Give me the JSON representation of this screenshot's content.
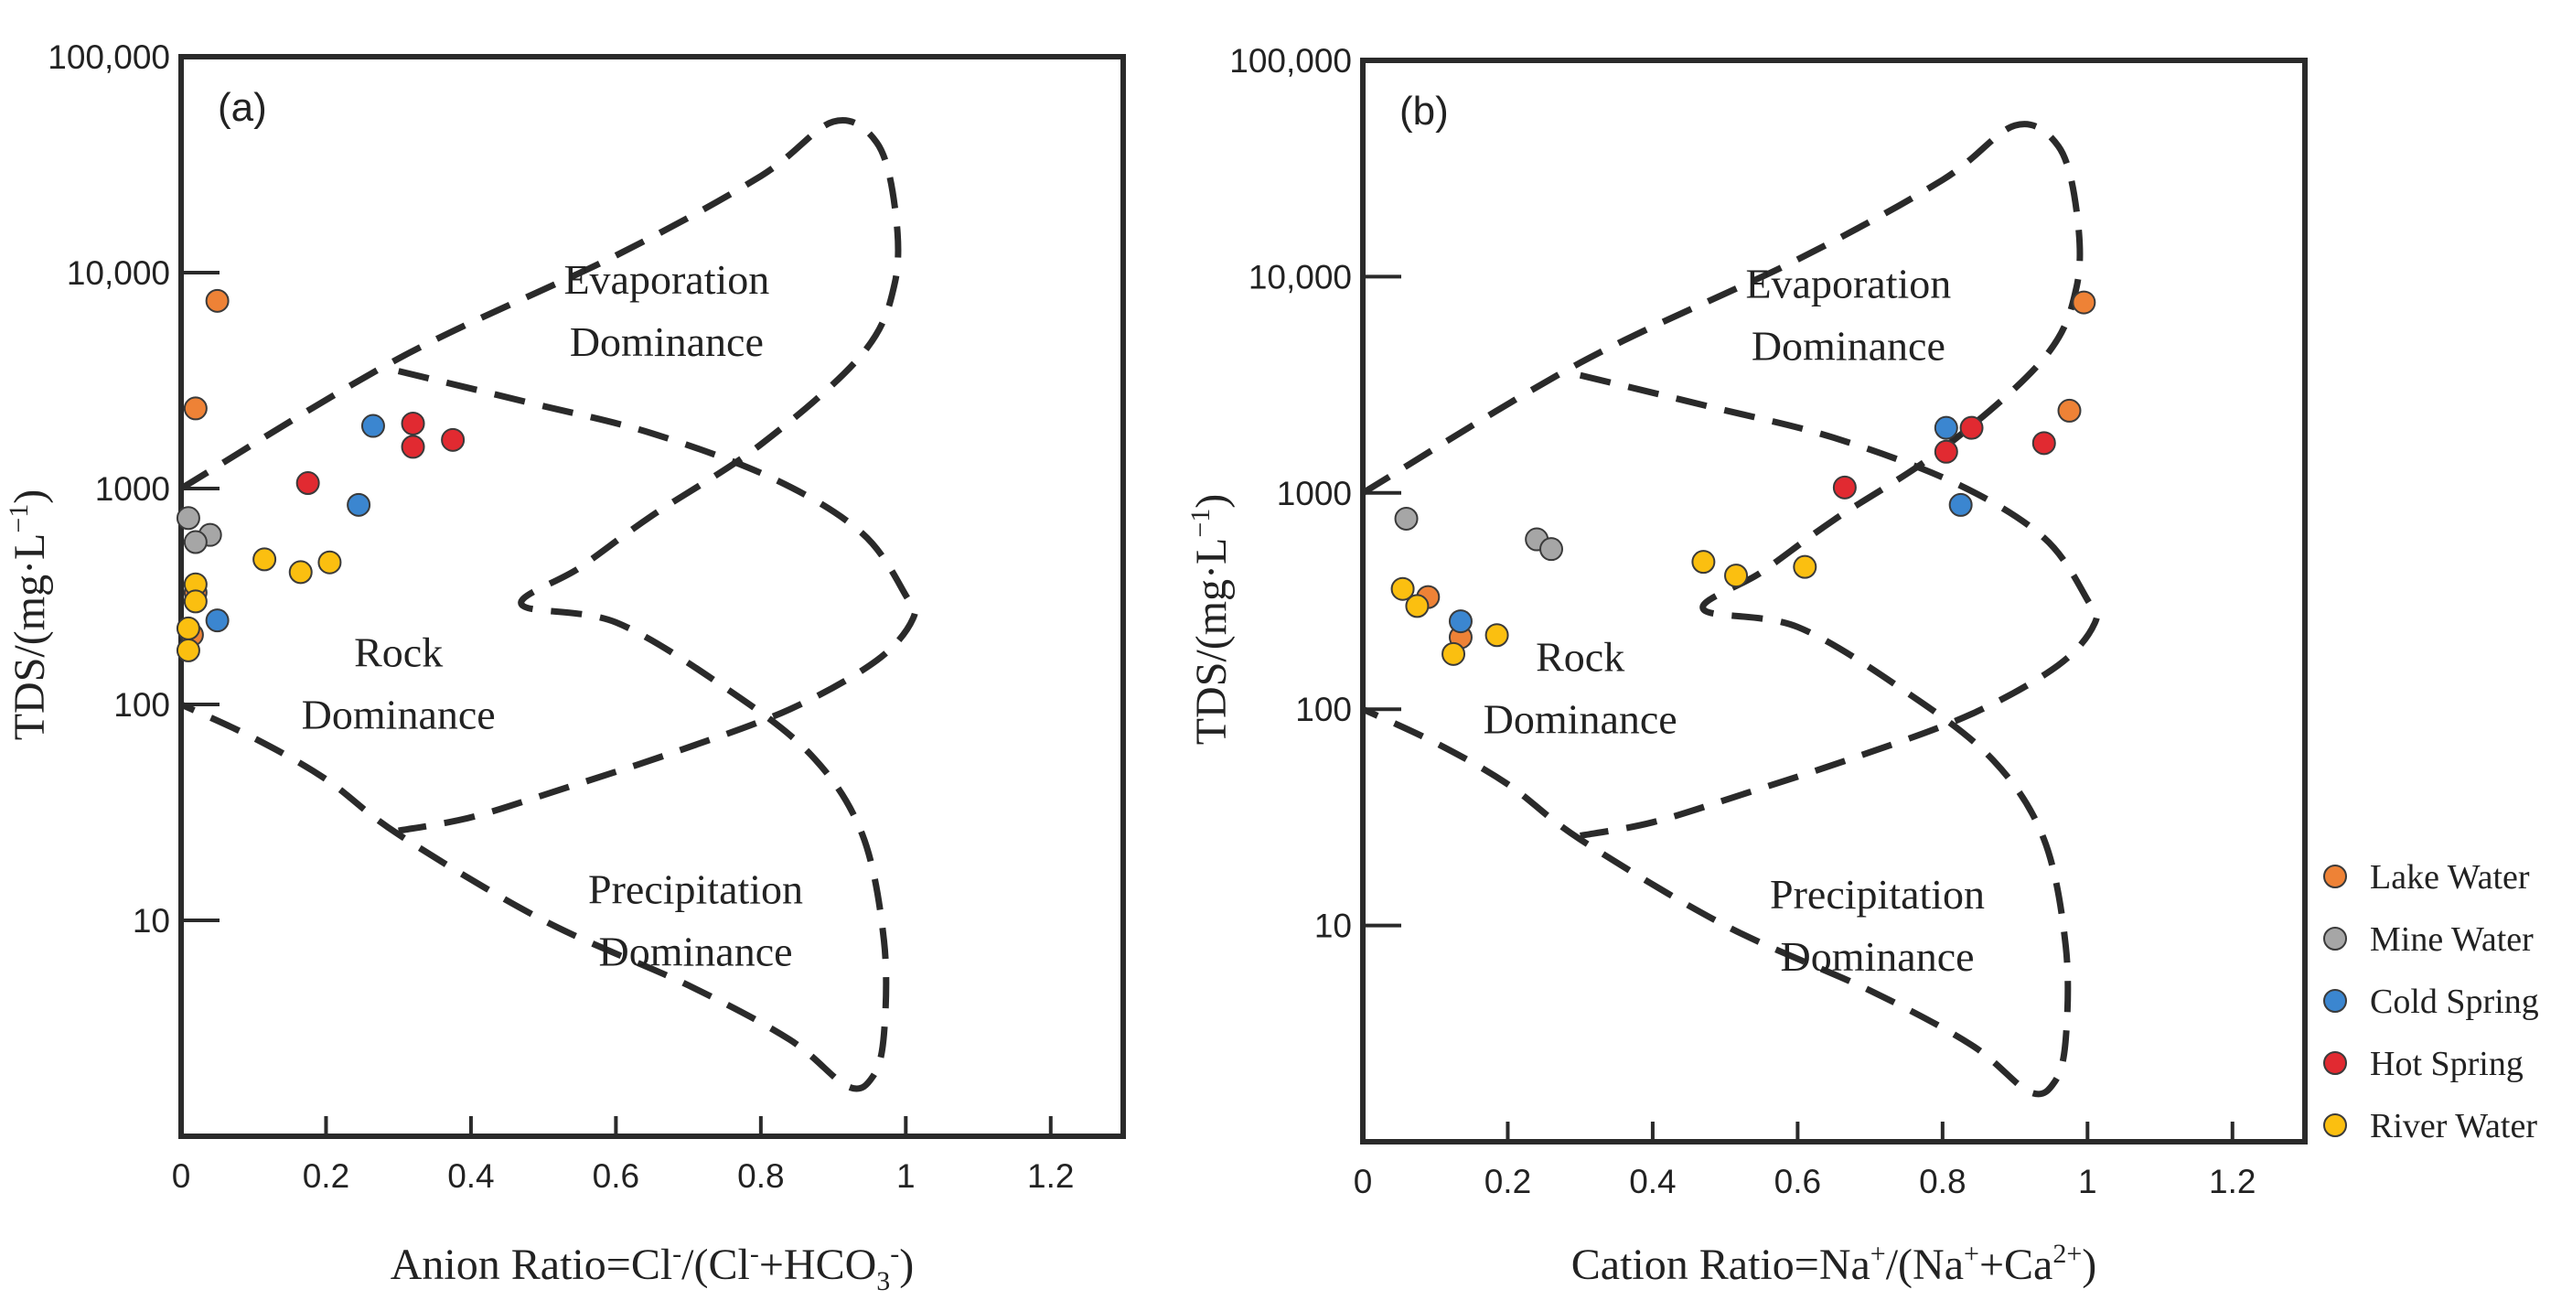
{
  "chart_data": [
    {
      "type": "scatter",
      "panel_label": "(a)",
      "xlabel": {
        "main": "Anion Ratio = Cl",
        "parts": [
          {
            "t": "Anion Ratio=Cl"
          },
          {
            "t": "-",
            "sup": true
          },
          {
            "t": "/(Cl"
          },
          {
            "t": "-",
            "sup": true
          },
          {
            "t": "+HCO"
          },
          {
            "t": "3",
            "sub": true
          },
          {
            "t": "-",
            "sup": true
          },
          {
            "t": ")"
          }
        ]
      },
      "ylabel": "TDS/(mg·L",
      "ylabel_sup": "−1",
      "ylabel_close": ")",
      "xlim": [
        0,
        1.3
      ],
      "ylim_log": [
        1,
        100000
      ],
      "xscale": "linear",
      "yscale": "log",
      "xticks": [
        {
          "v": 0,
          "label": "0"
        },
        {
          "v": 0.2,
          "label": "0.2"
        },
        {
          "v": 0.4,
          "label": "0.4"
        },
        {
          "v": 0.6,
          "label": "0.6"
        },
        {
          "v": 0.8,
          "label": "0.8"
        },
        {
          "v": 1.0,
          "label": "1"
        },
        {
          "v": 1.2,
          "label": "1.2"
        }
      ],
      "yticks": [
        {
          "v": 10,
          "label": "10"
        },
        {
          "v": 100,
          "label": "100"
        },
        {
          "v": 1000,
          "label": "1000"
        },
        {
          "v": 10000,
          "label": "10,000"
        },
        {
          "v": 100000,
          "label": "100,000"
        }
      ],
      "regions": [
        {
          "lines": [
            "Evaporation",
            "Dominance"
          ],
          "x": 0.67,
          "y": 8000
        },
        {
          "lines": [
            "Rock",
            "Dominance"
          ],
          "x": 0.3,
          "y": 150
        },
        {
          "lines": [
            "Precipitation",
            "Dominance"
          ],
          "x": 0.71,
          "y": 12
        }
      ],
      "series": [
        {
          "name": "Lake Water",
          "color": "#ee8236",
          "points": [
            [
              0.05,
              7400
            ],
            [
              0.02,
              2350
            ],
            [
              0.02,
              330
            ],
            [
              0.015,
              210
            ]
          ]
        },
        {
          "name": "Mine Water",
          "color": "#a6a6a6",
          "points": [
            [
              0.01,
              730
            ],
            [
              0.04,
              610
            ],
            [
              0.02,
              565
            ]
          ]
        },
        {
          "name": "Cold Spring",
          "color": "#3b86d0",
          "points": [
            [
              0.265,
              1950
            ],
            [
              0.245,
              840
            ],
            [
              0.05,
              245
            ]
          ]
        },
        {
          "name": "Hot Spring",
          "color": "#e12a31",
          "points": [
            [
              0.32,
              2000
            ],
            [
              0.32,
              1560
            ],
            [
              0.375,
              1680
            ],
            [
              0.175,
              1060
            ]
          ]
        },
        {
          "name": "River Water",
          "color": "#fbbf10",
          "points": [
            [
              0.115,
              470
            ],
            [
              0.165,
              410
            ],
            [
              0.205,
              455
            ],
            [
              0.02,
              360
            ],
            [
              0.02,
              300
            ],
            [
              0.01,
              225
            ],
            [
              0.01,
              178
            ]
          ]
        }
      ]
    },
    {
      "type": "scatter",
      "panel_label": "(b)",
      "xlabel": {
        "main": "Cation Ratio",
        "parts": [
          {
            "t": "Cation Ratio=Na"
          },
          {
            "t": "+",
            "sup": true
          },
          {
            "t": "/(Na"
          },
          {
            "t": "+",
            "sup": true
          },
          {
            "t": "+Ca"
          },
          {
            "t": "2+",
            "sup": true
          },
          {
            "t": ")"
          }
        ]
      },
      "ylabel": "TDS/(mg·L",
      "ylabel_sup": "−1",
      "ylabel_close": ")",
      "xlim": [
        0,
        1.3
      ],
      "ylim_log": [
        1,
        100000
      ],
      "xscale": "linear",
      "yscale": "log",
      "xticks": [
        {
          "v": 0,
          "label": "0"
        },
        {
          "v": 0.2,
          "label": "0.2"
        },
        {
          "v": 0.4,
          "label": "0.4"
        },
        {
          "v": 0.6,
          "label": "0.6"
        },
        {
          "v": 0.8,
          "label": "0.8"
        },
        {
          "v": 1.0,
          "label": "1"
        },
        {
          "v": 1.2,
          "label": "1.2"
        }
      ],
      "yticks": [
        {
          "v": 10,
          "label": "10"
        },
        {
          "v": 100,
          "label": "100"
        },
        {
          "v": 1000,
          "label": "1000"
        },
        {
          "v": 10000,
          "label": "10,000"
        },
        {
          "v": 100000,
          "label": "100,000"
        }
      ],
      "regions": [
        {
          "lines": [
            "Evaporation",
            "Dominance"
          ],
          "x": 0.67,
          "y": 8000
        },
        {
          "lines": [
            "Rock",
            "Dominance"
          ],
          "x": 0.3,
          "y": 150
        },
        {
          "lines": [
            "Precipitation",
            "Dominance"
          ],
          "x": 0.71,
          "y": 12
        }
      ],
      "series": [
        {
          "name": "Lake Water",
          "color": "#ee8236",
          "points": [
            [
              0.995,
              7600
            ],
            [
              0.975,
              2400
            ],
            [
              0.09,
              330
            ],
            [
              0.135,
              215
            ]
          ]
        },
        {
          "name": "Mine Water",
          "color": "#a6a6a6",
          "points": [
            [
              0.06,
              760
            ],
            [
              0.24,
              610
            ],
            [
              0.26,
              550
            ]
          ]
        },
        {
          "name": "Cold Spring",
          "color": "#3b86d0",
          "points": [
            [
              0.805,
              2000
            ],
            [
              0.825,
              880
            ],
            [
              0.135,
              255
            ]
          ]
        },
        {
          "name": "Hot Spring",
          "color": "#e12a31",
          "points": [
            [
              0.84,
              2000
            ],
            [
              0.805,
              1550
            ],
            [
              0.94,
              1700
            ],
            [
              0.665,
              1060
            ]
          ]
        },
        {
          "name": "River Water",
          "color": "#fbbf10",
          "points": [
            [
              0.47,
              480
            ],
            [
              0.515,
              415
            ],
            [
              0.61,
              455
            ],
            [
              0.055,
              360
            ],
            [
              0.075,
              300
            ],
            [
              0.185,
              220
            ],
            [
              0.125,
              180
            ]
          ]
        }
      ]
    }
  ],
  "legend": {
    "items": [
      {
        "label": "Lake Water",
        "color": "#ee8236"
      },
      {
        "label": "Mine Water",
        "color": "#a6a6a6"
      },
      {
        "label": "Cold Spring",
        "color": "#3b86d0"
      },
      {
        "label": "Hot Spring",
        "color": "#e12a31"
      },
      {
        "label": "River Water",
        "color": "#fbbf10"
      }
    ]
  },
  "boundary_curves": {
    "outer": [
      [
        0,
        1000
      ],
      [
        0.3,
        4000
      ],
      [
        0.6,
        12000
      ],
      [
        0.8,
        28000
      ],
      [
        0.9,
        50000
      ],
      [
        0.96,
        40000
      ],
      [
        0.985,
        20000
      ],
      [
        0.985,
        9000
      ],
      [
        0.94,
        4200
      ],
      [
        0.8,
        1600
      ],
      [
        0.65,
        750
      ],
      [
        0.55,
        430
      ],
      [
        0.47,
        290
      ],
      [
        0.6,
        240
      ],
      [
        0.75,
        120
      ],
      [
        0.87,
        58
      ],
      [
        0.94,
        25
      ],
      [
        0.97,
        8
      ],
      [
        0.97,
        3
      ],
      [
        0.955,
        1.9
      ],
      [
        0.92,
        1.7
      ],
      [
        0.84,
        2.8
      ],
      [
        0.7,
        5
      ],
      [
        0.5,
        10
      ],
      [
        0.3,
        25
      ],
      [
        0.2,
        45
      ],
      [
        0.1,
        70
      ],
      [
        0,
        100
      ]
    ],
    "inner": [
      [
        0.3,
        3500
      ],
      [
        0.48,
        2500
      ],
      [
        0.65,
        1800
      ],
      [
        0.82,
        1100
      ],
      [
        0.94,
        620
      ],
      [
        1.0,
        320
      ],
      [
        1.01,
        250
      ],
      [
        0.96,
        160
      ],
      [
        0.84,
        95
      ],
      [
        0.68,
        60
      ],
      [
        0.52,
        40
      ],
      [
        0.4,
        30
      ],
      [
        0.3,
        26
      ]
    ]
  }
}
